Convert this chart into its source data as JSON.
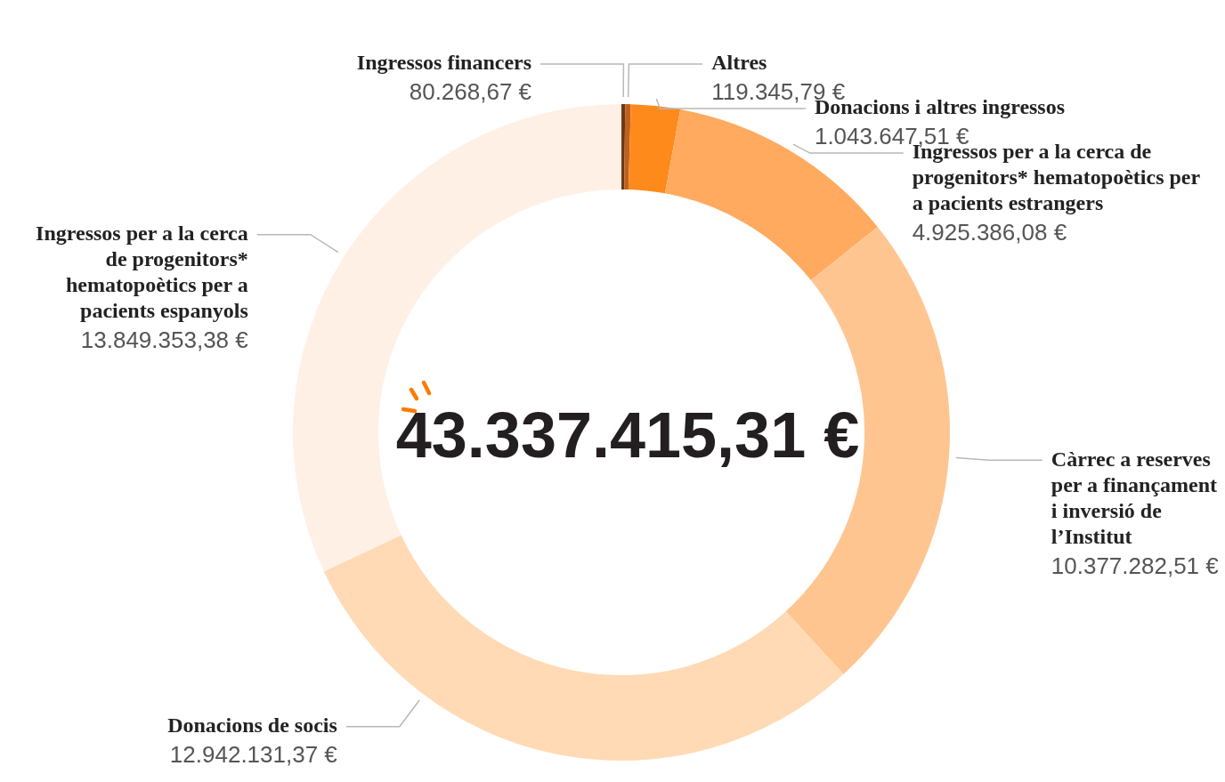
{
  "chart_data": {
    "type": "donut",
    "categories": [
      "Ingressos financers",
      "Altres",
      "Donacions i altres ingressos",
      "Ingressos per a la cerca de progenitors* hematopoètics per a pacients estrangers",
      "Càrrec a reserves per a finançament i inversió de l’Institut",
      "Donacions de socis",
      "Ingressos per a la cerca de progenitors* hematopoètics per a pacients espanyols"
    ],
    "values": [
      80268.67,
      119345.79,
      1043647.51,
      4925386.08,
      10377282.51,
      12942131.37,
      13849353.38
    ],
    "value_labels": [
      "80.268,67 €",
      "119.345,79 €",
      "1.043.647,51 €",
      "4.925.386,08 €",
      "10.377.282,51 €",
      "12.942.131,37 €",
      "13.849.353,38 €"
    ],
    "colors": [
      "#6b3a17",
      "#c0601c",
      "#ff8a1c",
      "#ffaa5f",
      "#ffc591",
      "#ffdab4",
      "#fff0e6"
    ],
    "annotations": [
      "43.337.415,31 €"
    ],
    "legend": false
  }
}
